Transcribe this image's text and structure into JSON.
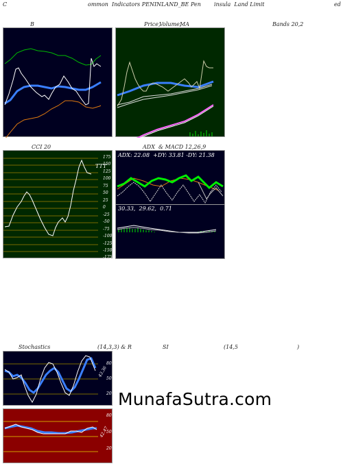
{
  "header": {
    "left": "C",
    "title1": "ommon  Indicators PENINLAND_BE Pen",
    "title2": "insula  Land Limit",
    "right": "ed"
  },
  "panels": {
    "bollinger": {
      "label": "B",
      "label2": "Bands 20,2"
    },
    "price_ma": {
      "label1": "Price,",
      "label2": "Volume,",
      "label3": "MA"
    },
    "cci": {
      "label": "CCI 20",
      "current": "TTT",
      "ticks": [
        "175",
        "150",
        "125",
        "100",
        "75",
        "50",
        "25",
        "0",
        "-25",
        "-50",
        "-75",
        "-100",
        "-125",
        "-150",
        "-175"
      ]
    },
    "adx_macd": {
      "label": "ADX  & MACD 12,26,9",
      "adx_text": "ADX: 22.08  +DY: 33.81 -DY: 21.38",
      "macd_text": "30.33,  29.62,  0.71"
    },
    "stochastics": {
      "label": "Stochastics",
      "params": "(14,3,3) & R",
      "ticks": [
        "80",
        "50",
        "20"
      ],
      "value": "43.36"
    },
    "rsi": {
      "label": "SI",
      "params": "(14,5",
      "close": ")",
      "ticks": [
        "80",
        "50",
        "20"
      ],
      "value": "42.47"
    }
  },
  "watermark": "MunafaSutra.com",
  "colors": {
    "dark_navy": "#000020",
    "dark_green": "#002800",
    "rsi_red": "#8b0000",
    "ma_blue": "#3a7fff",
    "signal_orange": "#e07a10",
    "bright_green": "#00ee00"
  }
}
